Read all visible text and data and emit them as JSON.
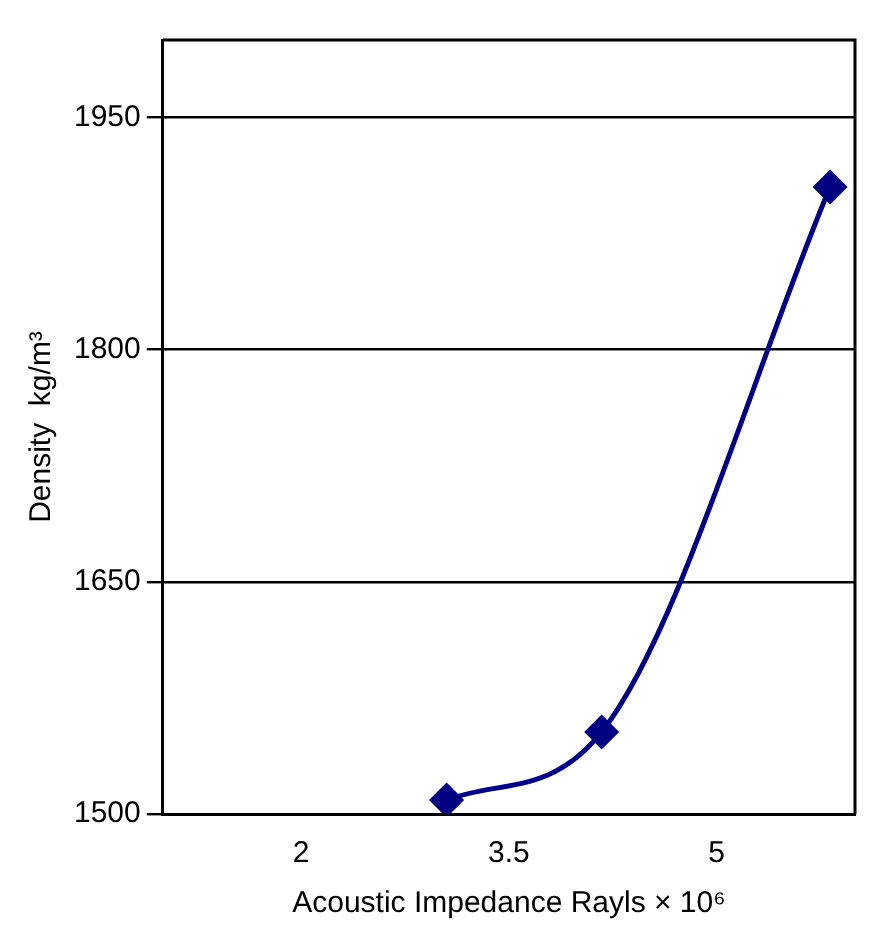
{
  "chart_data": {
    "type": "line",
    "xlabel": "Acoustic Impedance Rayls × 10⁶",
    "ylabel": "Density  kg/m³",
    "x": [
      3.05,
      4.17,
      5.82
    ],
    "series": [
      {
        "color": "#000080",
        "values": [
          1509,
          1553,
          1905
        ]
      }
    ],
    "xlim": [
      1,
      6
    ],
    "xticks": [
      2,
      3.5,
      5
    ],
    "ylim": [
      1500,
      2000
    ],
    "yticks": [
      1500,
      1650,
      1800,
      1950
    ],
    "grid": "y",
    "legend": false,
    "marker": "diamond",
    "line_style": "solid"
  }
}
